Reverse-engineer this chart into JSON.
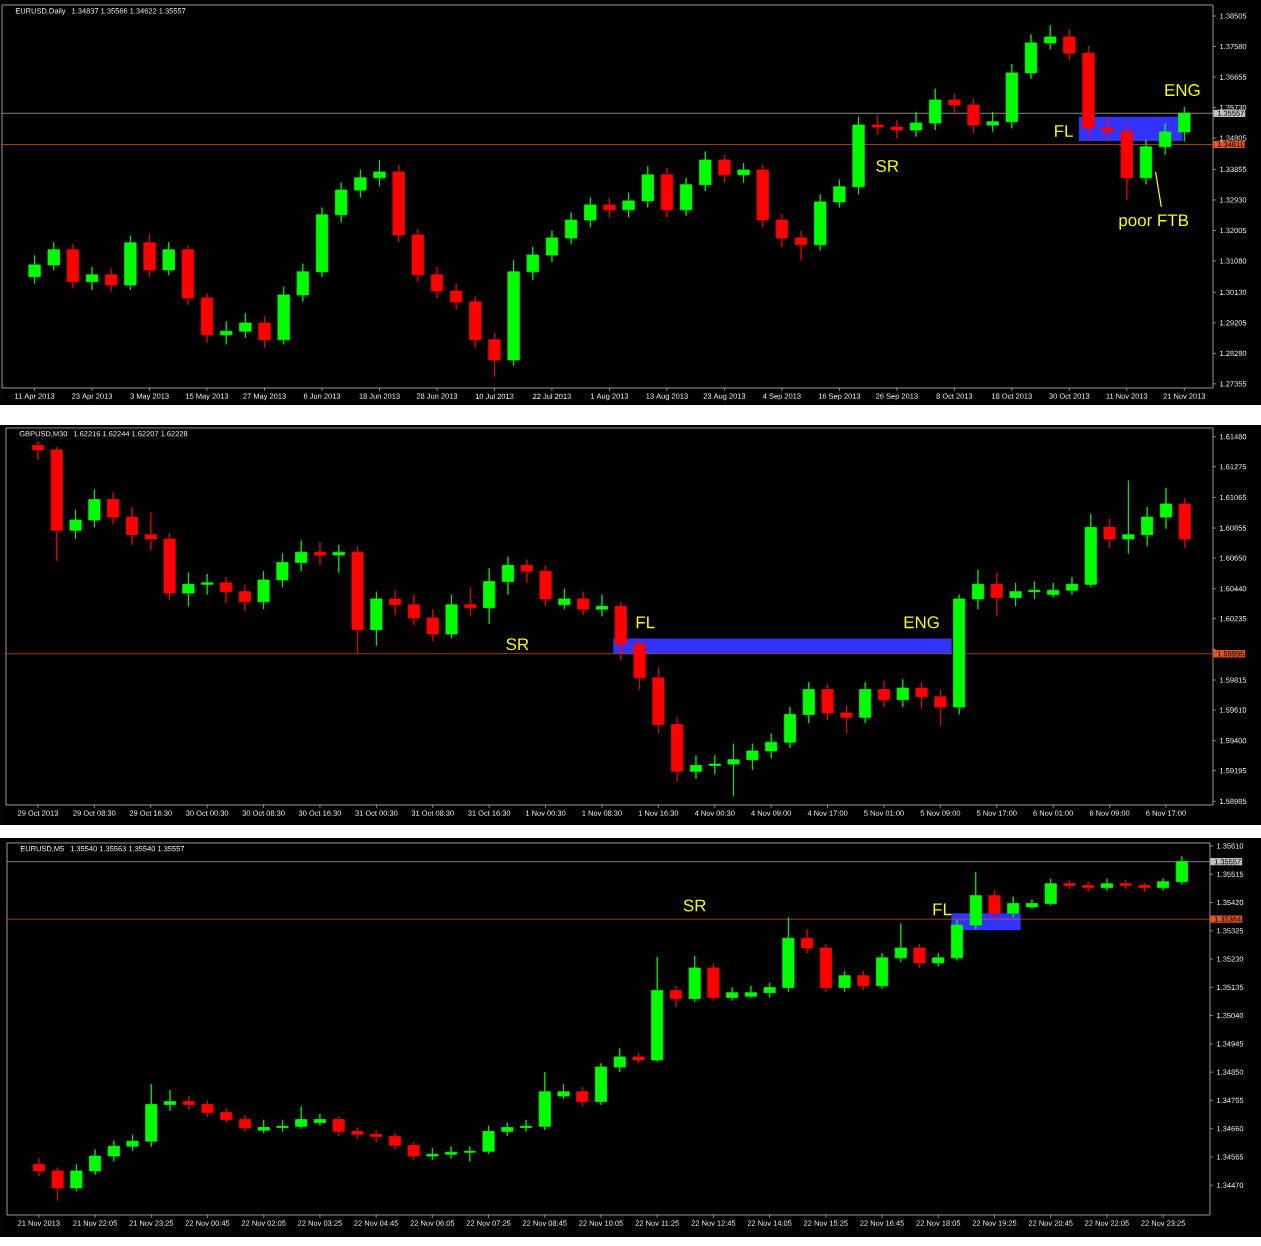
{
  "chart_data": [
    {
      "type": "candlestick",
      "title": "EURUSD,Daily",
      "subtitle": "1.34837 1.35566 1.34622 1.35557",
      "categories": [
        "11 Apr 2013",
        null,
        null,
        "23 Apr 2013",
        null,
        null,
        "3 May 2013",
        null,
        null,
        "15 May 2013",
        null,
        null,
        "27 May 2013",
        null,
        null,
        "6 Jun 2013",
        null,
        null,
        "18 Jun 2013",
        null,
        null,
        "28 Jun 2013",
        null,
        null,
        "10 Jul 2013",
        null,
        null,
        "22 Jul 2013",
        null,
        null,
        "1 Aug 2013",
        null,
        null,
        "13 Aug 2013",
        null,
        null,
        "23 Aug 2013",
        null,
        null,
        "4 Sep 2013",
        null,
        null,
        "16 Sep 2013",
        null,
        null,
        "26 Sep 2013",
        null,
        null,
        "8 Oct 2013",
        null,
        null,
        "18 Oct 2013",
        null,
        null,
        "30 Oct 2013",
        null,
        null,
        "11 Nov 2013",
        null,
        null,
        "21 Nov 2013"
      ],
      "ohlc": [
        [
          1.306,
          1.3125,
          1.304,
          1.3096
        ],
        [
          1.3096,
          1.3165,
          1.308,
          1.3142
        ],
        [
          1.3142,
          1.316,
          1.3025,
          1.3045
        ],
        [
          1.3045,
          1.309,
          1.302,
          1.3066
        ],
        [
          1.3066,
          1.3085,
          1.3015,
          1.3035
        ],
        [
          1.3035,
          1.3185,
          1.302,
          1.3163
        ],
        [
          1.3163,
          1.319,
          1.306,
          1.3081
        ],
        [
          1.3081,
          1.3165,
          1.3065,
          1.3142
        ],
        [
          1.3142,
          1.3155,
          1.2975,
          1.2996
        ],
        [
          1.2996,
          1.301,
          1.286,
          1.2884
        ],
        [
          1.2884,
          1.2925,
          1.2855,
          1.2895
        ],
        [
          1.2895,
          1.295,
          1.2875,
          1.292
        ],
        [
          1.292,
          1.294,
          1.2845,
          1.2869
        ],
        [
          1.2869,
          1.303,
          1.2855,
          1.3005
        ],
        [
          1.3005,
          1.31,
          1.2985,
          1.3075
        ],
        [
          1.3075,
          1.327,
          1.306,
          1.3248
        ],
        [
          1.3248,
          1.3345,
          1.3225,
          1.3323
        ],
        [
          1.3323,
          1.3385,
          1.33,
          1.336
        ],
        [
          1.336,
          1.3414,
          1.3335,
          1.3378
        ],
        [
          1.3378,
          1.34,
          1.3165,
          1.3187
        ],
        [
          1.3187,
          1.3205,
          1.3045,
          1.3066
        ],
        [
          1.3066,
          1.309,
          1.2995,
          1.3017
        ],
        [
          1.3017,
          1.304,
          1.296,
          1.2984
        ],
        [
          1.2984,
          1.3,
          1.2845,
          1.2869
        ],
        [
          1.2869,
          1.289,
          1.2757,
          1.2808
        ],
        [
          1.2808,
          1.311,
          1.279,
          1.3075
        ],
        [
          1.3075,
          1.315,
          1.305,
          1.3126
        ],
        [
          1.3126,
          1.32,
          1.3105,
          1.3178
        ],
        [
          1.3178,
          1.3255,
          1.316,
          1.3232
        ],
        [
          1.3232,
          1.33,
          1.321,
          1.3278
        ],
        [
          1.3278,
          1.33,
          1.324,
          1.3263
        ],
        [
          1.3263,
          1.3315,
          1.324,
          1.329
        ],
        [
          1.329,
          1.3395,
          1.327,
          1.3369
        ],
        [
          1.3369,
          1.339,
          1.324,
          1.3263
        ],
        [
          1.3263,
          1.336,
          1.3245,
          1.3339
        ],
        [
          1.3339,
          1.344,
          1.332,
          1.3414
        ],
        [
          1.3414,
          1.343,
          1.3345,
          1.3369
        ],
        [
          1.3369,
          1.3405,
          1.3345,
          1.3384
        ],
        [
          1.3384,
          1.34,
          1.321,
          1.3232
        ],
        [
          1.3232,
          1.325,
          1.315,
          1.3178
        ],
        [
          1.3178,
          1.32,
          1.311,
          1.3157
        ],
        [
          1.3157,
          1.331,
          1.314,
          1.3287
        ],
        [
          1.3287,
          1.3355,
          1.327,
          1.3333
        ],
        [
          1.3333,
          1.3545,
          1.331,
          1.352
        ],
        [
          1.352,
          1.355,
          1.349,
          1.3514
        ],
        [
          1.3514,
          1.3535,
          1.348,
          1.3505
        ],
        [
          1.3505,
          1.356,
          1.3485,
          1.3526
        ],
        [
          1.3526,
          1.363,
          1.3505,
          1.3596
        ],
        [
          1.3596,
          1.3615,
          1.3555,
          1.3581
        ],
        [
          1.3581,
          1.36,
          1.3495,
          1.352
        ],
        [
          1.352,
          1.356,
          1.35,
          1.353
        ],
        [
          1.353,
          1.3705,
          1.351,
          1.3678
        ],
        [
          1.3678,
          1.3795,
          1.366,
          1.3769
        ],
        [
          1.3769,
          1.3823,
          1.375,
          1.3787
        ],
        [
          1.3787,
          1.381,
          1.3715,
          1.3738
        ],
        [
          1.3738,
          1.376,
          1.348,
          1.3511
        ],
        [
          1.3511,
          1.3545,
          1.347,
          1.35
        ],
        [
          1.35,
          1.352,
          1.3293,
          1.336
        ],
        [
          1.336,
          1.3475,
          1.334,
          1.3454
        ],
        [
          1.3454,
          1.3525,
          1.343,
          1.3499
        ],
        [
          1.3499,
          1.3575,
          1.347,
          1.3556
        ]
      ],
      "colors": [
        "#00ff00",
        "#00ff00",
        "#ff0000",
        "#00ff00",
        "#ff0000",
        "#00ff00",
        "#ff0000",
        "#00ff00",
        "#ff0000",
        "#ff0000",
        "#00ff00",
        "#00ff00",
        "#ff0000",
        "#00ff00",
        "#00ff00",
        "#00ff00",
        "#00ff00",
        "#00ff00",
        "#00ff00",
        "#ff0000",
        "#ff0000",
        "#ff0000",
        "#ff0000",
        "#ff0000",
        "#ff0000",
        "#00ff00",
        "#00ff00",
        "#00ff00",
        "#00ff00",
        "#00ff00",
        "#ff0000",
        "#00ff00",
        "#00ff00",
        "#ff0000",
        "#00ff00",
        "#00ff00",
        "#ff0000",
        "#00ff00",
        "#ff0000",
        "#ff0000",
        "#ff0000",
        "#00ff00",
        "#00ff00",
        "#00ff00",
        "#ff0000",
        "#ff0000",
        "#00ff00",
        "#00ff00",
        "#ff0000",
        "#ff0000",
        "#00ff00",
        "#00ff00",
        "#00ff00",
        "#00ff00",
        "#ff0000",
        "#ff0000",
        "#ff0000",
        "#ff0000",
        "#00ff00",
        "#00ff00",
        "#00ff00"
      ],
      "bands": [
        {
          "axis": "y",
          "from": 1.3472,
          "to": 1.3545,
          "color": "#3333ff"
        }
      ],
      "ylim": [
        1.2723,
        1.3884
      ],
      "yticks": [
        1.38505,
        {
          "value": 1.3758,
          "label": "1.37580"
        },
        1.36655,
        {
          "value": 1.3573,
          "label": "1.35730"
        },
        1.34805,
        1.33855,
        {
          "value": 1.3293,
          "label": "1.32930"
        },
        1.32005,
        {
          "value": 1.3108,
          "label": "1.31080"
        },
        {
          "value": 1.3013,
          "label": "1.30130"
        },
        1.29205,
        {
          "value": 1.2828,
          "label": "1.28280"
        },
        1.27355
      ],
      "ref_lines": [
        {
          "axis": "y",
          "value": 1.35557,
          "label": "1.35557",
          "color": "#c0c0c0"
        },
        {
          "axis": "y",
          "value": 1.34611,
          "label": "1.34611",
          "color": "#e0561a"
        }
      ],
      "annotations": [
        "SR",
        "FL",
        "ENG",
        "poor FTB"
      ]
    },
    {
      "type": "candlestick",
      "title": "GBPUSD,M30",
      "subtitle": "1.62216 1.62244 1.62207 1.62228",
      "categories": [
        "29 Oct 2013",
        null,
        null,
        "29 Oct 08:30",
        null,
        null,
        "29 Oct 16:30",
        null,
        null,
        "30 Oct 00:30",
        null,
        null,
        "30 Oct 08:30",
        null,
        null,
        "30 Oct 16:30",
        null,
        null,
        "31 Oct 00:30",
        null,
        null,
        "31 Oct 08:30",
        null,
        null,
        "31 Oct 16:30",
        null,
        null,
        "1 Nov 00:30",
        null,
        null,
        "1 Nov 08:30",
        null,
        null,
        "1 Nov 16:30",
        null,
        null,
        "4 Nov 00:30",
        null,
        null,
        "4 Nov 09:00",
        null,
        null,
        "4 Nov 17:00",
        null,
        null,
        "5 Nov 01:00",
        null,
        null,
        "5 Nov 09:00",
        null,
        null,
        "5 Nov 17:00",
        null,
        null,
        "6 Nov 01:00",
        null,
        null,
        "6 Nov 09:00",
        null,
        null,
        "6 Nov 17:00",
        null
      ],
      "ohlc": [
        [
          1.6142,
          1.6145,
          1.6132,
          1.6139
        ],
        [
          1.6139,
          1.6141,
          1.6063,
          1.6084
        ],
        [
          1.6084,
          1.6098,
          1.6078,
          1.6091
        ],
        [
          1.6091,
          1.6112,
          1.6086,
          1.6105
        ],
        [
          1.6105,
          1.611,
          1.6088,
          1.6093
        ],
        [
          1.6093,
          1.61,
          1.6074,
          1.6081
        ],
        [
          1.6081,
          1.6096,
          1.607,
          1.6078
        ],
        [
          1.6078,
          1.6082,
          1.6036,
          1.6041
        ],
        [
          1.6041,
          1.6055,
          1.6032,
          1.6047
        ],
        [
          1.6047,
          1.6054,
          1.604,
          1.6048
        ],
        [
          1.6048,
          1.6052,
          1.6034,
          1.6042
        ],
        [
          1.6042,
          1.6047,
          1.6029,
          1.6035
        ],
        [
          1.6035,
          1.6056,
          1.603,
          1.605
        ],
        [
          1.605,
          1.6068,
          1.6045,
          1.6062
        ],
        [
          1.6062,
          1.6077,
          1.6056,
          1.6069
        ],
        [
          1.6069,
          1.6076,
          1.606,
          1.6067
        ],
        [
          1.6067,
          1.6074,
          1.6055,
          1.6069
        ],
        [
          1.6069,
          1.6073,
          1.6,
          1.6016
        ],
        [
          1.6016,
          1.6042,
          1.6005,
          1.6037
        ],
        [
          1.6037,
          1.6043,
          1.6026,
          1.6033
        ],
        [
          1.6033,
          1.604,
          1.6019,
          1.6024
        ],
        [
          1.6024,
          1.603,
          1.6008,
          1.6013
        ],
        [
          1.6013,
          1.604,
          1.601,
          1.6033
        ],
        [
          1.6033,
          1.6045,
          1.6025,
          1.6031
        ],
        [
          1.6031,
          1.6058,
          1.602,
          1.6049
        ],
        [
          1.6049,
          1.6066,
          1.604,
          1.606
        ],
        [
          1.606,
          1.6064,
          1.6048,
          1.6056
        ],
        [
          1.6056,
          1.606,
          1.6032,
          1.6037
        ],
        [
          1.6033,
          1.6044,
          1.603,
          1.6037
        ],
        [
          1.6037,
          1.6042,
          1.6026,
          1.603
        ],
        [
          1.603,
          1.604,
          1.6025,
          1.6032
        ],
        [
          1.6032,
          1.6035,
          1.5995,
          1.6006
        ],
        [
          1.6006,
          1.601,
          1.5975,
          1.5983
        ],
        [
          1.5983,
          1.599,
          1.5945,
          1.5951
        ],
        [
          1.5951,
          1.5956,
          1.5912,
          1.5919
        ],
        [
          1.5919,
          1.593,
          1.5914,
          1.5923
        ],
        [
          1.5923,
          1.593,
          1.5917,
          1.5924
        ],
        [
          1.5924,
          1.5938,
          1.5902,
          1.5927
        ],
        [
          1.5927,
          1.5938,
          1.592,
          1.5933
        ],
        [
          1.5933,
          1.5945,
          1.5928,
          1.5939
        ],
        [
          1.5939,
          1.5963,
          1.5935,
          1.5958
        ],
        [
          1.5958,
          1.598,
          1.5952,
          1.5975
        ],
        [
          1.5975,
          1.5979,
          1.5954,
          1.5959
        ],
        [
          1.5959,
          1.5964,
          1.5945,
          1.5956
        ],
        [
          1.5956,
          1.598,
          1.5952,
          1.5975
        ],
        [
          1.5975,
          1.5981,
          1.5963,
          1.5968
        ],
        [
          1.5968,
          1.5982,
          1.5963,
          1.5976
        ],
        [
          1.5976,
          1.598,
          1.5962,
          1.597
        ],
        [
          1.597,
          1.5975,
          1.595,
          1.5963
        ],
        [
          1.5963,
          1.604,
          1.5958,
          1.6037
        ],
        [
          1.6037,
          1.6057,
          1.603,
          1.6047
        ],
        [
          1.6047,
          1.6055,
          1.6025,
          1.6038
        ],
        [
          1.6038,
          1.6048,
          1.6032,
          1.6042
        ],
        [
          1.6042,
          1.6049,
          1.6037,
          1.6043
        ],
        [
          1.604,
          1.6048,
          1.6038,
          1.6043
        ],
        [
          1.6043,
          1.6052,
          1.604,
          1.6047
        ],
        [
          1.6047,
          1.6095,
          1.6045,
          1.6086
        ],
        [
          1.6086,
          1.6092,
          1.6072,
          1.6078
        ],
        [
          1.6078,
          1.6118,
          1.6068,
          1.6081
        ],
        [
          1.6081,
          1.61,
          1.6073,
          1.6093
        ],
        [
          1.6093,
          1.6113,
          1.6085,
          1.6102
        ],
        [
          1.6102,
          1.6106,
          1.6072,
          1.6078
        ]
      ],
      "colors": [
        "#ff0000",
        "#ff0000",
        "#00ff00",
        "#00ff00",
        "#ff0000",
        "#ff0000",
        "#ff0000",
        "#ff0000",
        "#00ff00",
        "#00ff00",
        "#ff0000",
        "#ff0000",
        "#00ff00",
        "#00ff00",
        "#00ff00",
        "#ff0000",
        "#00ff00",
        "#ff0000",
        "#00ff00",
        "#ff0000",
        "#ff0000",
        "#ff0000",
        "#00ff00",
        "#ff0000",
        "#00ff00",
        "#00ff00",
        "#ff0000",
        "#ff0000",
        "#00ff00",
        "#ff0000",
        "#00ff00",
        "#ff0000",
        "#ff0000",
        "#ff0000",
        "#ff0000",
        "#00ff00",
        "#00ff00",
        "#00ff00",
        "#00ff00",
        "#00ff00",
        "#00ff00",
        "#00ff00",
        "#ff0000",
        "#ff0000",
        "#00ff00",
        "#ff0000",
        "#00ff00",
        "#ff0000",
        "#ff0000",
        "#00ff00",
        "#00ff00",
        "#ff0000",
        "#00ff00",
        "#00ff00",
        "#00ff00",
        "#00ff00",
        "#00ff00",
        "#ff0000",
        "#00ff00",
        "#00ff00",
        "#00ff00",
        "#ff0000"
      ],
      "bands": [
        {
          "axis": "y",
          "from": 1.59995,
          "to": 1.601,
          "color": "#3333ff"
        }
      ],
      "ylim": [
        1.5896,
        1.6154
      ],
      "yticks": [
        {
          "value": 1.6148,
          "label": "1.61480"
        },
        1.61275,
        1.61065,
        1.60855,
        {
          "value": 1.6065,
          "label": "1.60650"
        },
        {
          "value": 1.6044,
          "label": "1.60440"
        },
        1.60235,
        {
          "value": 1.60025,
          "label": null
        },
        1.59815,
        {
          "value": 1.5961,
          "label": "1.59610"
        },
        {
          "value": 1.594,
          "label": "1.59400"
        },
        1.59195,
        1.58985
      ],
      "ref_lines": [
        {
          "axis": "y",
          "value": 1.59995,
          "label": "1.59995",
          "color": "#e0561a"
        }
      ],
      "annotations": [
        "SR",
        "FL",
        "ENG"
      ]
    },
    {
      "type": "candlestick",
      "title": "EURUSD,M5",
      "subtitle": "1.35540 1.35563 1.35540 1.35557",
      "categories": [
        "21 Nov 2013",
        null,
        null,
        "21 Nov 22:05",
        null,
        null,
        "21 Nov 23:25",
        null,
        null,
        "22 Nov 00:45",
        null,
        null,
        "22 Nov 02:05",
        null,
        null,
        "22 Nov 03:25",
        null,
        null,
        "22 Nov 04:45",
        null,
        null,
        "22 Nov 06:05",
        null,
        null,
        "22 Nov 07:25",
        null,
        null,
        "22 Nov 08:45",
        null,
        null,
        "22 Nov 10:05",
        null,
        null,
        "22 Nov 11:25",
        null,
        null,
        "22 Nov 12:45",
        null,
        null,
        "22 Nov 14:05",
        null,
        null,
        "22 Nov 15:25",
        null,
        null,
        "22 Nov 16:45",
        null,
        null,
        "22 Nov 18:05",
        null,
        null,
        "22 Nov 19:25",
        null,
        null,
        "22 Nov 20:45",
        null,
        null,
        "22 Nov 22:05",
        null,
        null,
        "22 Nov 23:25",
        null
      ],
      "ohlc": [
        [
          1.3454,
          1.3456,
          1.345,
          1.34518
        ],
        [
          1.34518,
          1.3453,
          1.34418,
          1.34461
        ],
        [
          1.34461,
          1.3454,
          1.3445,
          1.34518
        ],
        [
          1.34518,
          1.3459,
          1.34505,
          1.34568
        ],
        [
          1.34568,
          1.3462,
          1.3455,
          1.34601
        ],
        [
          1.34601,
          1.3464,
          1.34585,
          1.34618
        ],
        [
          1.34618,
          1.3481,
          1.346,
          1.34741
        ],
        [
          1.34741,
          1.3479,
          1.3472,
          1.34751
        ],
        [
          1.34751,
          1.3477,
          1.34725,
          1.34741
        ],
        [
          1.34741,
          1.34755,
          1.347,
          1.34714
        ],
        [
          1.34714,
          1.3473,
          1.3468,
          1.34691
        ],
        [
          1.34691,
          1.34705,
          1.3465,
          1.34664
        ],
        [
          1.34655,
          1.3469,
          1.34645,
          1.34664
        ],
        [
          1.34664,
          1.3469,
          1.3465,
          1.34668
        ],
        [
          1.34668,
          1.34735,
          1.3466,
          1.34691
        ],
        [
          1.3468,
          1.3471,
          1.3467,
          1.34691
        ],
        [
          1.34691,
          1.347,
          1.34635,
          1.34651
        ],
        [
          1.34651,
          1.34665,
          1.34625,
          1.34641
        ],
        [
          1.34641,
          1.34655,
          1.34615,
          1.34634
        ],
        [
          1.34634,
          1.34645,
          1.3459,
          1.34604
        ],
        [
          1.34604,
          1.34615,
          1.34555,
          1.34568
        ],
        [
          1.34568,
          1.34595,
          1.34555,
          1.34574
        ],
        [
          1.34574,
          1.346,
          1.3456,
          1.34581
        ],
        [
          1.34581,
          1.346,
          1.3455,
          1.34584
        ],
        [
          1.34584,
          1.3467,
          1.34575,
          1.34651
        ],
        [
          1.34651,
          1.3468,
          1.34635,
          1.34664
        ],
        [
          1.34664,
          1.3469,
          1.3465,
          1.34668
        ],
        [
          1.34668,
          1.3485,
          1.34655,
          1.34784
        ],
        [
          1.3477,
          1.3481,
          1.3476,
          1.34784
        ],
        [
          1.34784,
          1.348,
          1.34735,
          1.34751
        ],
        [
          1.34751,
          1.3488,
          1.3474,
          1.34867
        ],
        [
          1.34867,
          1.3493,
          1.3485,
          1.34901
        ],
        [
          1.34901,
          1.34915,
          1.3488,
          1.34891
        ],
        [
          1.34891,
          1.35237,
          1.34885,
          1.35124
        ],
        [
          1.35124,
          1.3514,
          1.3507,
          1.35097
        ],
        [
          1.35097,
          1.3524,
          1.35085,
          1.352
        ],
        [
          1.352,
          1.35215,
          1.3509,
          1.35101
        ],
        [
          1.35101,
          1.35135,
          1.3509,
          1.35117
        ],
        [
          1.35105,
          1.3514,
          1.351,
          1.35117
        ],
        [
          1.35117,
          1.3515,
          1.351,
          1.35134
        ],
        [
          1.35134,
          1.3537,
          1.3512,
          1.353
        ],
        [
          1.353,
          1.3533,
          1.3525,
          1.35267
        ],
        [
          1.35267,
          1.3528,
          1.3512,
          1.35134
        ],
        [
          1.35134,
          1.3519,
          1.3512,
          1.35174
        ],
        [
          1.35174,
          1.3519,
          1.35125,
          1.3514
        ],
        [
          1.3514,
          1.3525,
          1.3513,
          1.35234
        ],
        [
          1.35234,
          1.3535,
          1.3522,
          1.35267
        ],
        [
          1.35267,
          1.3528,
          1.352,
          1.35217
        ],
        [
          1.35217,
          1.3525,
          1.35205,
          1.35234
        ],
        [
          1.35234,
          1.3536,
          1.35225,
          1.35344
        ],
        [
          1.35344,
          1.35523,
          1.3533,
          1.35443
        ],
        [
          1.35443,
          1.3546,
          1.3536,
          1.35384
        ],
        [
          1.35384,
          1.3544,
          1.3537,
          1.35417
        ],
        [
          1.35405,
          1.3543,
          1.354,
          1.35417
        ],
        [
          1.35417,
          1.355,
          1.3541,
          1.35483
        ],
        [
          1.35483,
          1.35495,
          1.35465,
          1.35477
        ],
        [
          1.35477,
          1.3549,
          1.35455,
          1.3547
        ],
        [
          1.3547,
          1.355,
          1.3546,
          1.35483
        ],
        [
          1.35483,
          1.35495,
          1.35465,
          1.35477
        ],
        [
          1.35477,
          1.35485,
          1.35455,
          1.3547
        ],
        [
          1.3547,
          1.355,
          1.3546,
          1.3549
        ],
        [
          1.3549,
          1.35575,
          1.3548,
          1.35557
        ]
      ],
      "colors": [
        "#ff0000",
        "#ff0000",
        "#00ff00",
        "#00ff00",
        "#00ff00",
        "#00ff00",
        "#00ff00",
        "#00ff00",
        "#ff0000",
        "#ff0000",
        "#ff0000",
        "#ff0000",
        "#00ff00",
        "#00ff00",
        "#00ff00",
        "#00ff00",
        "#ff0000",
        "#ff0000",
        "#ff0000",
        "#ff0000",
        "#ff0000",
        "#00ff00",
        "#00ff00",
        "#00ff00",
        "#00ff00",
        "#00ff00",
        "#00ff00",
        "#00ff00",
        "#00ff00",
        "#ff0000",
        "#00ff00",
        "#00ff00",
        "#ff0000",
        "#00ff00",
        "#ff0000",
        "#00ff00",
        "#ff0000",
        "#00ff00",
        "#00ff00",
        "#00ff00",
        "#00ff00",
        "#ff0000",
        "#ff0000",
        "#00ff00",
        "#ff0000",
        "#00ff00",
        "#00ff00",
        "#ff0000",
        "#00ff00",
        "#00ff00",
        "#00ff00",
        "#ff0000",
        "#00ff00",
        "#00ff00",
        "#00ff00",
        "#ff0000",
        "#ff0000",
        "#00ff00",
        "#ff0000",
        "#ff0000",
        "#00ff00",
        "#00ff00"
      ],
      "bands": [
        {
          "axis": "y",
          "from": 1.35327,
          "to": 1.35384,
          "color": "#3333ff"
        }
      ],
      "ylim": [
        1.3437,
        1.3562
      ],
      "yticks": [
        {
          "value": 1.3561,
          "label": "1.35610"
        },
        1.35515,
        {
          "value": 1.3542,
          "label": "1.35420"
        },
        1.35325,
        {
          "value": 1.3523,
          "label": "1.35230"
        },
        1.35135,
        {
          "value": 1.3504,
          "label": "1.35040"
        },
        1.34945,
        {
          "value": 1.3485,
          "label": "1.34850"
        },
        1.34755,
        {
          "value": 1.3466,
          "label": "1.34660"
        },
        1.34565,
        {
          "value": 1.3447,
          "label": "1.34470"
        }
      ],
      "ref_lines": [
        {
          "axis": "y",
          "value": 1.35557,
          "label": "1.35557",
          "color": "#c0c0c0"
        },
        {
          "axis": "y",
          "value": 1.35364,
          "label": "1.35364",
          "color": "#e0561a"
        }
      ],
      "annotations": [
        "SR",
        "FL"
      ]
    }
  ]
}
